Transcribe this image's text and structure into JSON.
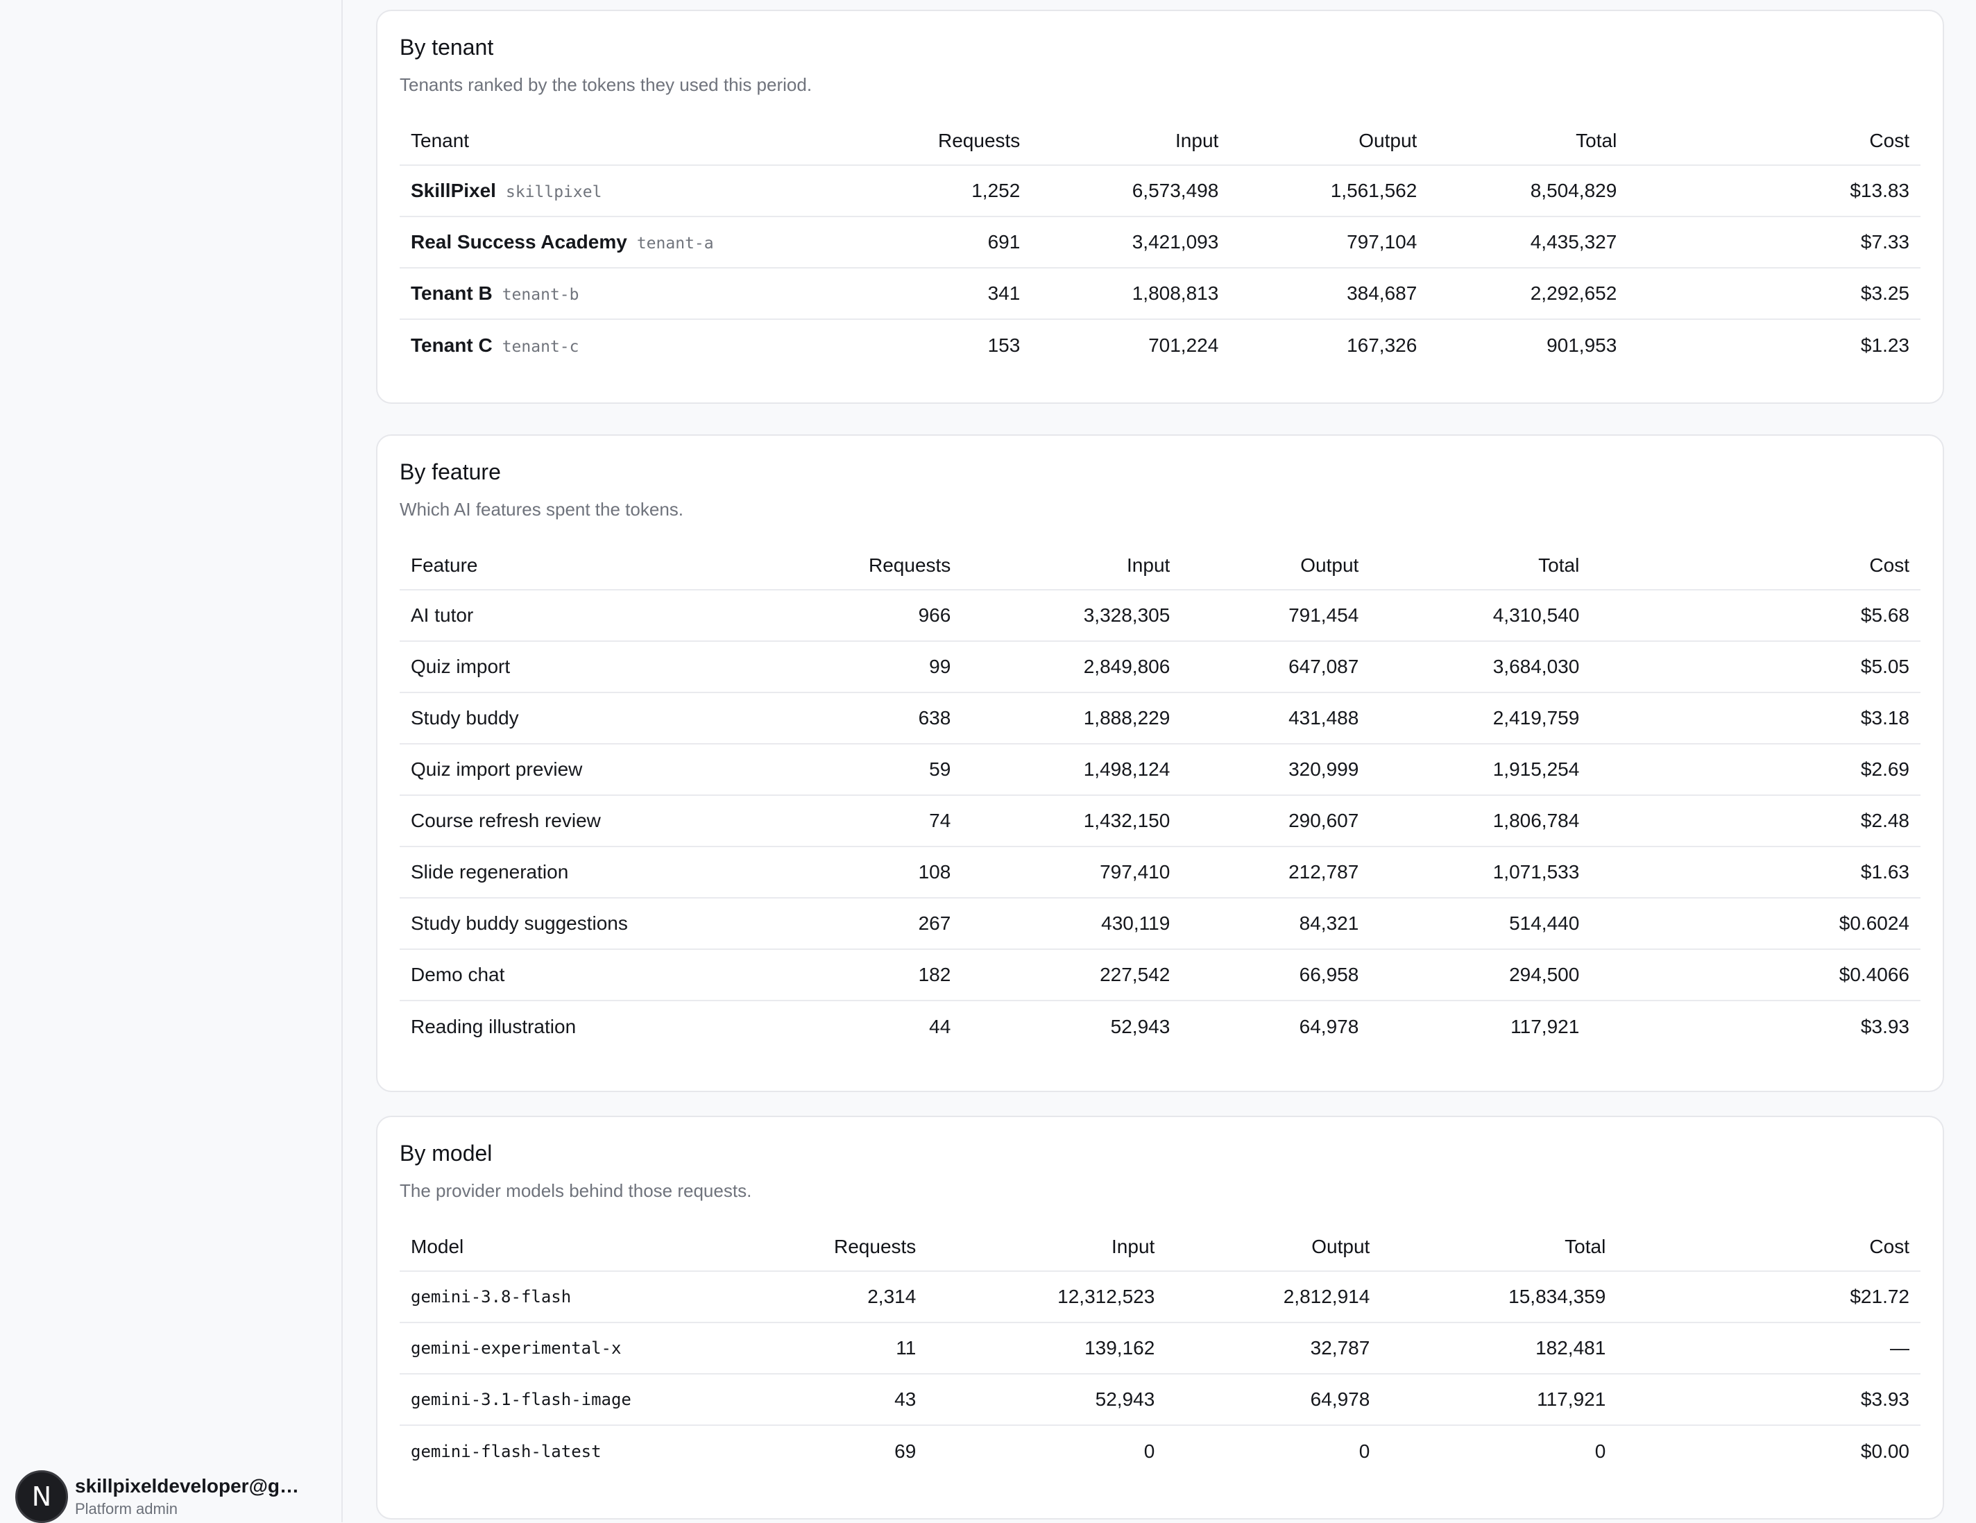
{
  "user": {
    "avatar_letter": "N",
    "email": "skillpixeldeveloper@gm…",
    "role": "Platform admin"
  },
  "tenant_card": {
    "title": "By tenant",
    "subtitle": "Tenants ranked by the tokens they used this period.",
    "columns": [
      "Tenant",
      "Requests",
      "Input",
      "Output",
      "Total",
      "Cost"
    ],
    "rows": [
      {
        "name": "SkillPixel",
        "slug": "skillpixel",
        "requests": "1,252",
        "input": "6,573,498",
        "output": "1,561,562",
        "total": "8,504,829",
        "cost": "$13.83"
      },
      {
        "name": "Real Success Academy",
        "slug": "tenant-a",
        "requests": "691",
        "input": "3,421,093",
        "output": "797,104",
        "total": "4,435,327",
        "cost": "$7.33"
      },
      {
        "name": "Tenant B",
        "slug": "tenant-b",
        "requests": "341",
        "input": "1,808,813",
        "output": "384,687",
        "total": "2,292,652",
        "cost": "$3.25"
      },
      {
        "name": "Tenant C",
        "slug": "tenant-c",
        "requests": "153",
        "input": "701,224",
        "output": "167,326",
        "total": "901,953",
        "cost": "$1.23"
      }
    ]
  },
  "feature_card": {
    "title": "By feature",
    "subtitle": "Which AI features spent the tokens.",
    "columns": [
      "Feature",
      "Requests",
      "Input",
      "Output",
      "Total",
      "Cost"
    ],
    "rows": [
      {
        "name": "AI tutor",
        "requests": "966",
        "input": "3,328,305",
        "output": "791,454",
        "total": "4,310,540",
        "cost": "$5.68"
      },
      {
        "name": "Quiz import",
        "requests": "99",
        "input": "2,849,806",
        "output": "647,087",
        "total": "3,684,030",
        "cost": "$5.05"
      },
      {
        "name": "Study buddy",
        "requests": "638",
        "input": "1,888,229",
        "output": "431,488",
        "total": "2,419,759",
        "cost": "$3.18"
      },
      {
        "name": "Quiz import preview",
        "requests": "59",
        "input": "1,498,124",
        "output": "320,999",
        "total": "1,915,254",
        "cost": "$2.69"
      },
      {
        "name": "Course refresh review",
        "requests": "74",
        "input": "1,432,150",
        "output": "290,607",
        "total": "1,806,784",
        "cost": "$2.48"
      },
      {
        "name": "Slide regeneration",
        "requests": "108",
        "input": "797,410",
        "output": "212,787",
        "total": "1,071,533",
        "cost": "$1.63"
      },
      {
        "name": "Study buddy suggestions",
        "requests": "267",
        "input": "430,119",
        "output": "84,321",
        "total": "514,440",
        "cost": "$0.6024"
      },
      {
        "name": "Demo chat",
        "requests": "182",
        "input": "227,542",
        "output": "66,958",
        "total": "294,500",
        "cost": "$0.4066"
      },
      {
        "name": "Reading illustration",
        "requests": "44",
        "input": "52,943",
        "output": "64,978",
        "total": "117,921",
        "cost": "$3.93"
      }
    ]
  },
  "model_card": {
    "title": "By model",
    "subtitle": "The provider models behind those requests.",
    "columns": [
      "Model",
      "Requests",
      "Input",
      "Output",
      "Total",
      "Cost"
    ],
    "rows": [
      {
        "name": "gemini-3.8-flash",
        "requests": "2,314",
        "input": "12,312,523",
        "output": "2,812,914",
        "total": "15,834,359",
        "cost": "$21.72"
      },
      {
        "name": "gemini-experimental-x",
        "requests": "11",
        "input": "139,162",
        "output": "32,787",
        "total": "182,481",
        "cost": "—"
      },
      {
        "name": "gemini-3.1-flash-image",
        "requests": "43",
        "input": "52,943",
        "output": "64,978",
        "total": "117,921",
        "cost": "$3.93"
      },
      {
        "name": "gemini-flash-latest",
        "requests": "69",
        "input": "0",
        "output": "0",
        "total": "0",
        "cost": "$0.00"
      }
    ]
  }
}
